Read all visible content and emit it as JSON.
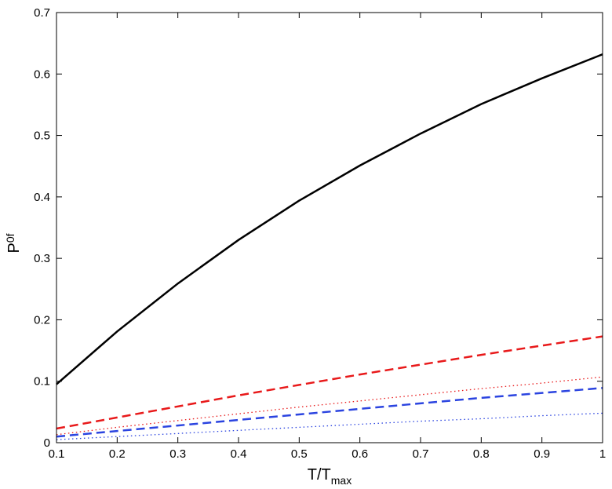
{
  "chart_data": {
    "type": "line",
    "title": "",
    "xlabel": {
      "main": "T/T",
      "sub": "max"
    },
    "ylabel": {
      "main": "P",
      "sub": "0f"
    },
    "xlim": [
      0.1,
      1
    ],
    "ylim": [
      0,
      0.7
    ],
    "xticks": [
      0.1,
      0.2,
      0.3,
      0.4,
      0.5,
      0.6,
      0.7,
      0.8,
      0.9,
      1
    ],
    "xtick_labels": [
      "0.1",
      "0.2",
      "0.3",
      "0.4",
      "0.5",
      "0.6",
      "0.7",
      "0.8",
      "0.9",
      "1"
    ],
    "yticks": [
      0,
      0.1,
      0.2,
      0.3,
      0.4,
      0.5,
      0.6,
      0.7
    ],
    "ytick_labels": [
      "0",
      "0.1",
      "0.2",
      "0.3",
      "0.4",
      "0.5",
      "0.6",
      "0.7"
    ],
    "grid": false,
    "legend": "none",
    "x": [
      0.1,
      0.2,
      0.3,
      0.4,
      0.5,
      0.6,
      0.7,
      0.8,
      0.9,
      1.0
    ],
    "series": [
      {
        "color": "#000000",
        "style": "solid",
        "values": [
          0.095,
          0.181,
          0.259,
          0.33,
          0.394,
          0.451,
          0.503,
          0.551,
          0.593,
          0.632
        ]
      },
      {
        "color": "#e8191a",
        "style": "dashed",
        "values": [
          0.023,
          0.041,
          0.059,
          0.077,
          0.094,
          0.111,
          0.127,
          0.143,
          0.158,
          0.173
        ]
      },
      {
        "color": "#e8191a",
        "style": "dotted",
        "values": [
          0.013,
          0.025,
          0.036,
          0.047,
          0.058,
          0.068,
          0.078,
          0.088,
          0.097,
          0.107
        ]
      },
      {
        "color": "#2b44e0",
        "style": "dashed",
        "values": [
          0.01,
          0.019,
          0.028,
          0.037,
          0.046,
          0.055,
          0.064,
          0.073,
          0.081,
          0.089
        ]
      },
      {
        "color": "#2b44e0",
        "style": "dotted",
        "values": [
          0.005,
          0.01,
          0.015,
          0.02,
          0.025,
          0.03,
          0.035,
          0.039,
          0.044,
          0.048
        ]
      }
    ]
  }
}
